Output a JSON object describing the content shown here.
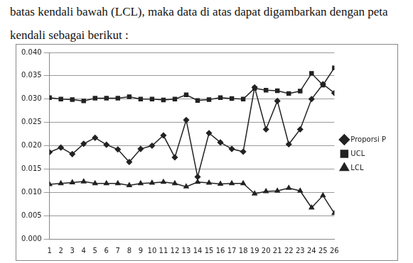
{
  "page_text": [
    "batas kendali bawah (LCL), maka data di atas dapat digambarkan dengan peta",
    "kendali sebagai berikut :"
  ],
  "chart_data": {
    "type": "line",
    "categories": [
      "1",
      "2",
      "3",
      "4",
      "5",
      "6",
      "7",
      "8",
      "9",
      "10",
      "11",
      "12",
      "13",
      "14",
      "15",
      "16",
      "17",
      "18",
      "19",
      "20",
      "21",
      "22",
      "23",
      "24",
      "25",
      "26"
    ],
    "series": [
      {
        "name": "Proporsi P",
        "color": "#222222",
        "marker": "diamond",
        "line_style": "solid",
        "values": [
          0.0186,
          0.0196,
          0.0182,
          0.0204,
          0.0217,
          0.0202,
          0.0192,
          0.0165,
          0.0193,
          0.02,
          0.0222,
          0.0175,
          0.0255,
          0.0133,
          0.0227,
          0.0207,
          0.0193,
          0.0187,
          0.0325,
          0.0235,
          0.0296,
          0.0203,
          0.0235,
          0.03,
          0.0332,
          0.0313
        ]
      },
      {
        "name": "UCL",
        "color": "#222222",
        "marker": "square",
        "line_style": "solid",
        "values": [
          0.0303,
          0.03,
          0.0299,
          0.0296,
          0.0302,
          0.0302,
          0.0302,
          0.0305,
          0.03,
          0.03,
          0.0298,
          0.03,
          0.0309,
          0.0297,
          0.0299,
          0.0303,
          0.0301,
          0.03,
          0.0323,
          0.0319,
          0.0318,
          0.0312,
          0.0317,
          0.0355,
          0.033,
          0.0367
        ]
      },
      {
        "name": "LCL",
        "color": "#222222",
        "marker": "triangle",
        "line_style": "solid",
        "values": [
          0.0117,
          0.0119,
          0.0121,
          0.0123,
          0.0119,
          0.0119,
          0.0119,
          0.0115,
          0.0119,
          0.012,
          0.0122,
          0.0119,
          0.0112,
          0.0122,
          0.012,
          0.0118,
          0.0119,
          0.0119,
          0.0097,
          0.0102,
          0.0103,
          0.0109,
          0.0103,
          0.0067,
          0.0093,
          0.0055
        ]
      }
    ],
    "ylim": [
      0,
      0.04
    ],
    "yticks": [
      {
        "value": 0,
        "label": "0.000"
      },
      {
        "value": 0.005,
        "label": "0.005"
      },
      {
        "value": 0.01,
        "label": "0.010"
      },
      {
        "value": 0.015,
        "label": "0.015"
      },
      {
        "value": 0.02,
        "label": "0.020"
      },
      {
        "value": 0.025,
        "label": "0.025"
      },
      {
        "value": 0.03,
        "label": "0.030"
      },
      {
        "value": 0.035,
        "label": "0.035"
      },
      {
        "value": 0.04,
        "label": "0.040"
      }
    ],
    "grid": true,
    "legend": "right"
  }
}
